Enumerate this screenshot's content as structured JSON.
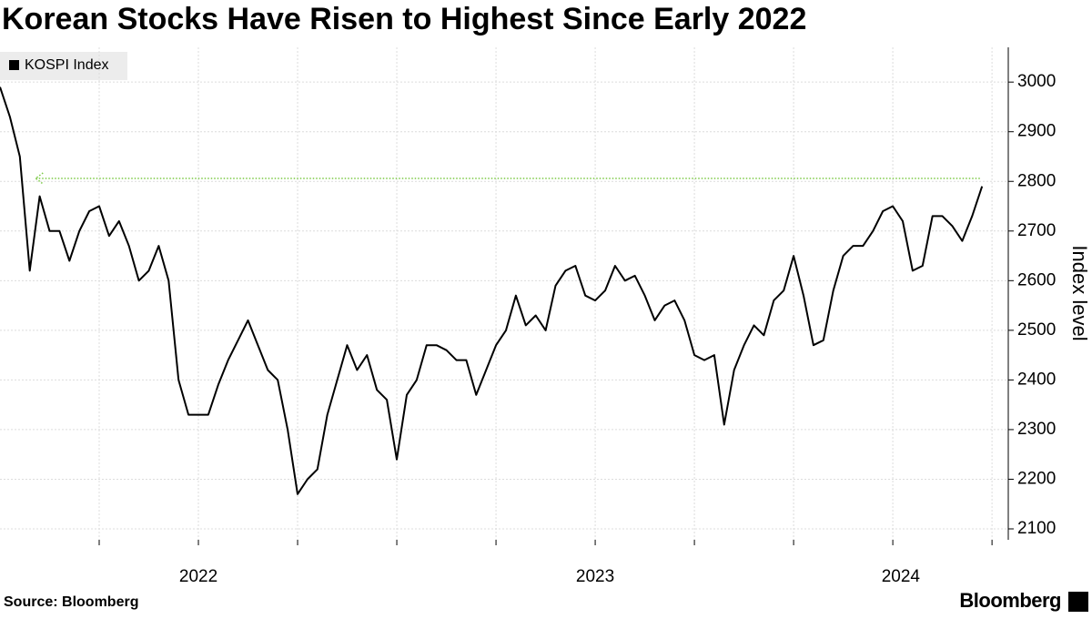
{
  "chart_data": {
    "type": "line",
    "title": "Korean Stocks Have Risen to Highest Since Early 2022",
    "y_axis_label": "Index level",
    "source": "Source: Bloomberg",
    "logo": "Bloomberg",
    "legend_position": "top-left",
    "grid": true,
    "xlim": [
      2022.0,
      2024.541
    ],
    "ylim": [
      2078,
      3070
    ],
    "yticks": [
      2100,
      2200,
      2300,
      2400,
      2500,
      2600,
      2700,
      2800,
      2900,
      3000
    ],
    "xticks": [
      {
        "value": 2022.5,
        "label": "2022"
      },
      {
        "value": 2023.5,
        "label": "2023"
      },
      {
        "value": 2024.27,
        "label": "2024"
      }
    ],
    "xgrid": [
      2022.25,
      2022.5,
      2022.75,
      2023.0,
      2023.25,
      2023.5,
      2023.75,
      2024.0,
      2024.25,
      2024.5
    ],
    "reference_line": {
      "value": 2806,
      "x": [
        2022.09,
        2024.47
      ],
      "color": "#7ac943"
    },
    "x": [
      2022.0,
      2022.025,
      2022.05,
      2022.075,
      2022.1,
      2022.125,
      2022.15,
      2022.175,
      2022.2,
      2022.225,
      2022.25,
      2022.275,
      2022.3,
      2022.325,
      2022.35,
      2022.375,
      2022.4,
      2022.425,
      2022.45,
      2022.475,
      2022.5,
      2022.525,
      2022.55,
      2022.575,
      2022.6,
      2022.625,
      2022.65,
      2022.675,
      2022.7,
      2022.725,
      2022.75,
      2022.775,
      2022.8,
      2022.825,
      2022.85,
      2022.875,
      2022.9,
      2022.925,
      2022.95,
      2022.975,
      2023.0,
      2023.025,
      2023.05,
      2023.075,
      2023.1,
      2023.125,
      2023.15,
      2023.175,
      2023.2,
      2023.225,
      2023.25,
      2023.275,
      2023.3,
      2023.325,
      2023.35,
      2023.375,
      2023.4,
      2023.425,
      2023.45,
      2023.475,
      2023.5,
      2023.525,
      2023.55,
      2023.575,
      2023.6,
      2023.625,
      2023.65,
      2023.675,
      2023.7,
      2023.725,
      2023.75,
      2023.775,
      2023.8,
      2023.825,
      2023.85,
      2023.875,
      2023.9,
      2023.925,
      2023.95,
      2023.975,
      2024.0,
      2024.025,
      2024.05,
      2024.075,
      2024.1,
      2024.125,
      2024.15,
      2024.175,
      2024.2,
      2024.225,
      2024.25,
      2024.275,
      2024.3,
      2024.325,
      2024.35,
      2024.375,
      2024.4,
      2024.425,
      2024.45,
      2024.475
    ],
    "series": [
      {
        "name": "KOSPI Index",
        "color": "#000000",
        "values": [
          2990,
          2930,
          2850,
          2620,
          2770,
          2700,
          2700,
          2640,
          2700,
          2740,
          2750,
          2690,
          2720,
          2670,
          2600,
          2620,
          2670,
          2600,
          2400,
          2330,
          2330,
          2330,
          2390,
          2440,
          2480,
          2520,
          2470,
          2420,
          2400,
          2300,
          2170,
          2200,
          2220,
          2330,
          2400,
          2470,
          2420,
          2450,
          2380,
          2360,
          2240,
          2370,
          2400,
          2470,
          2470,
          2460,
          2440,
          2440,
          2370,
          2420,
          2470,
          2500,
          2570,
          2510,
          2530,
          2500,
          2590,
          2620,
          2630,
          2570,
          2560,
          2580,
          2630,
          2600,
          2610,
          2570,
          2520,
          2550,
          2560,
          2520,
          2450,
          2440,
          2450,
          2310,
          2420,
          2470,
          2510,
          2490,
          2560,
          2580,
          2650,
          2570,
          2470,
          2480,
          2580,
          2650,
          2670,
          2670,
          2700,
          2740,
          2750,
          2720,
          2620,
          2630,
          2730,
          2730,
          2710,
          2680,
          2730,
          2790
        ]
      }
    ]
  }
}
